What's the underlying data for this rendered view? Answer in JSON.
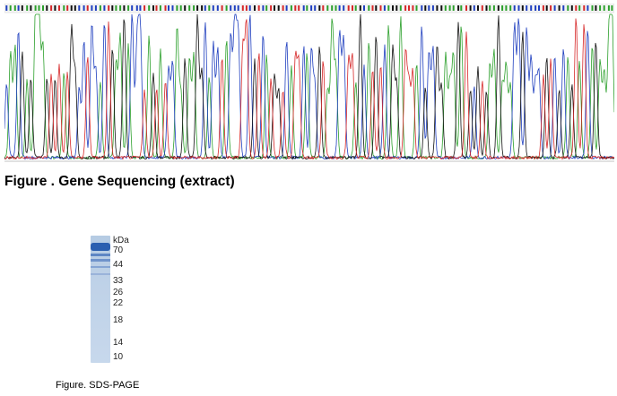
{
  "sequencing": {
    "caption": "Figure . Gene Sequencing (extract)",
    "channel_colors": {
      "A": "#2ca02c",
      "C": "#1f3fbf",
      "G": "#111111",
      "T": "#d62728"
    }
  },
  "sds_page": {
    "caption": "Figure. SDS-PAGE",
    "unit_label": "kDa",
    "marker_labels": [
      "70",
      "44",
      "33",
      "26",
      "22",
      "18",
      "14",
      "10"
    ],
    "band_color": "#2b5fb0"
  }
}
